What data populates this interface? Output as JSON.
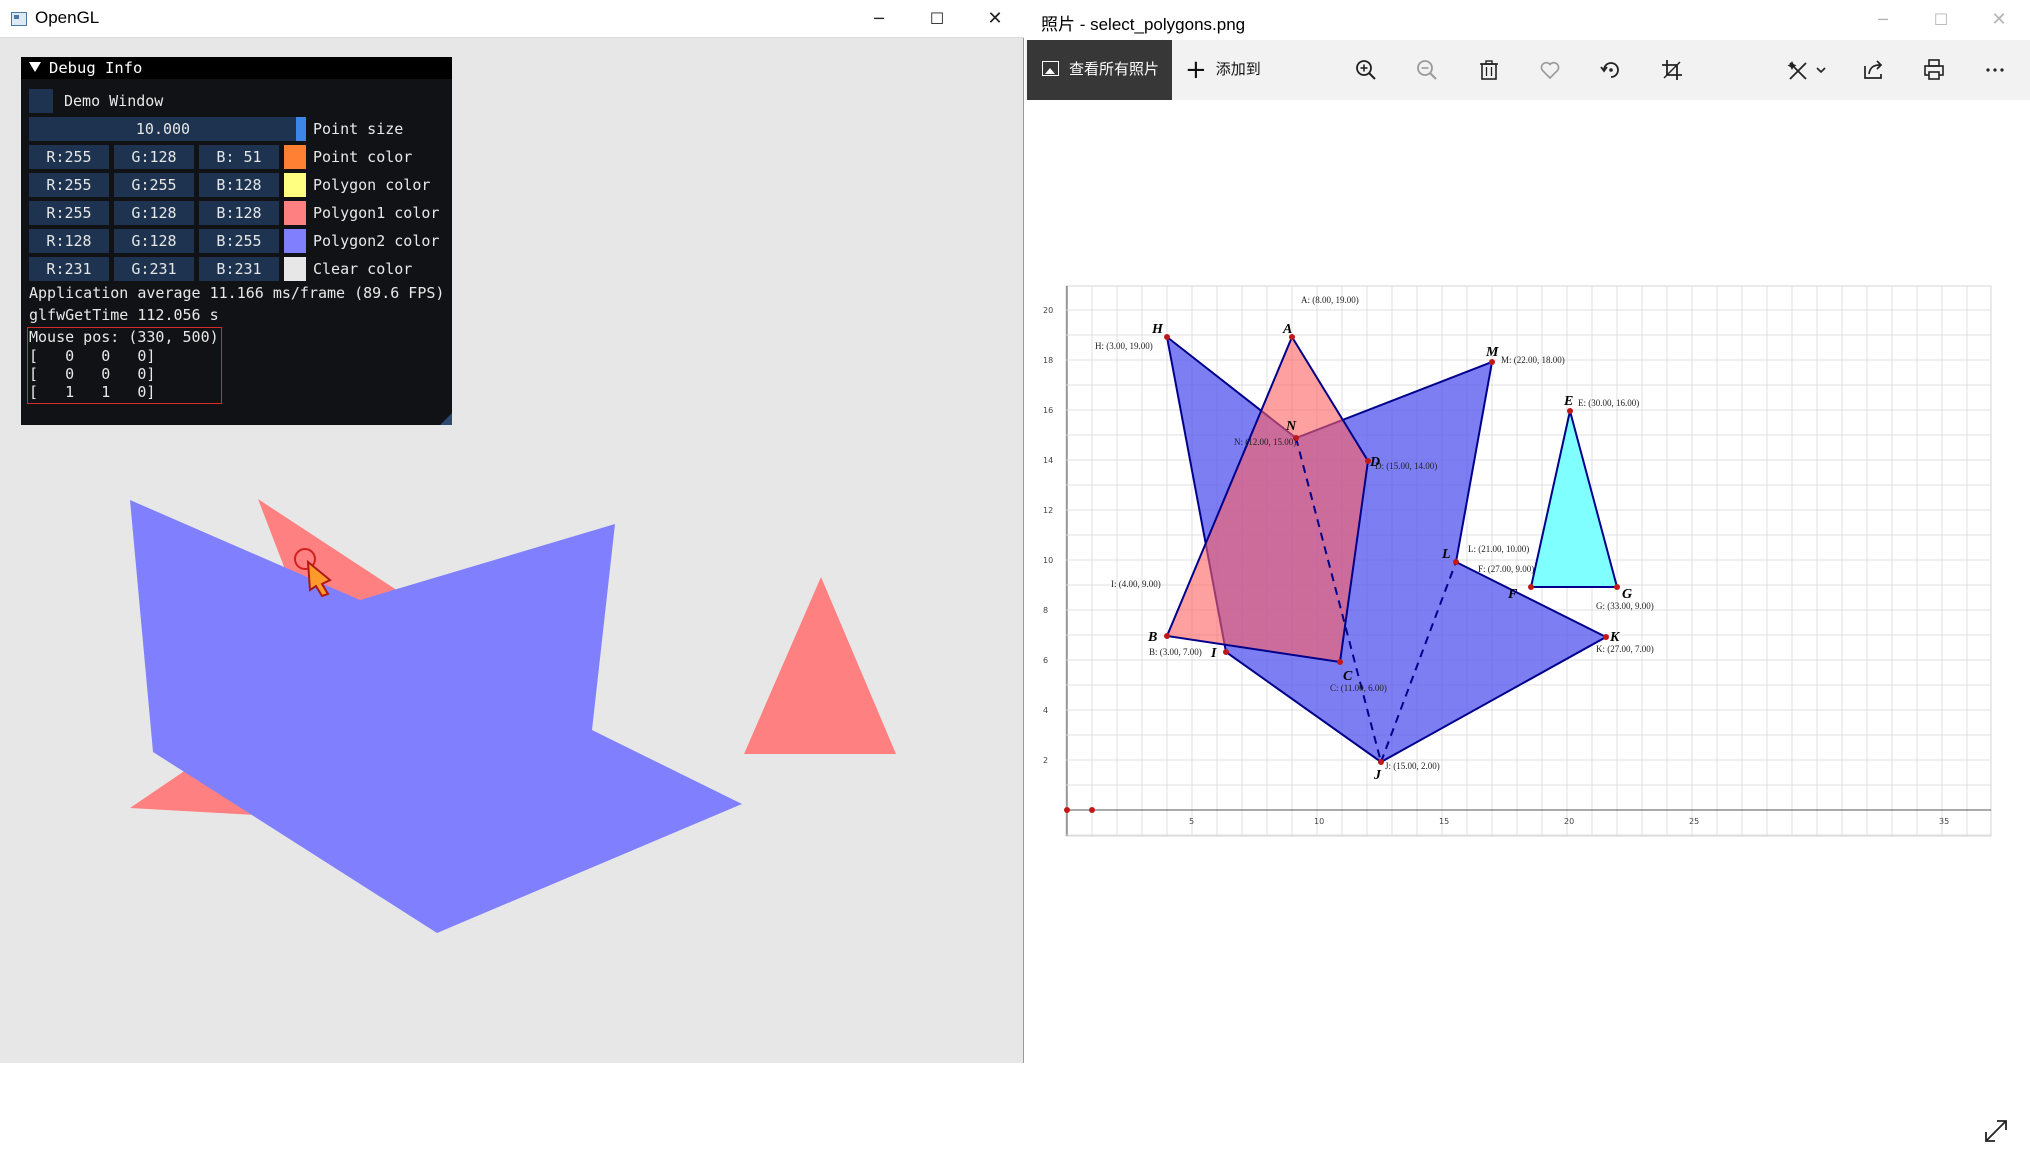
{
  "left_window": {
    "title": "OpenGL",
    "controls": {
      "minimize": "─",
      "maximize": "☐",
      "close": "✕"
    }
  },
  "debug": {
    "header": "Debug Info",
    "demo_window_label": "Demo Window",
    "point_size_value": "10.000",
    "point_size_label": "Point size",
    "rows": [
      {
        "r": "R:255",
        "g": "G:128",
        "b": "B: 51",
        "label": "Point color",
        "color": "#ff8033"
      },
      {
        "r": "R:255",
        "g": "G:255",
        "b": "B:128",
        "label": "Polygon color",
        "color": "#ffff80"
      },
      {
        "r": "R:255",
        "g": "G:128",
        "b": "B:128",
        "label": "Polygon1 color",
        "color": "#ff8080"
      },
      {
        "r": "R:128",
        "g": "G:128",
        "b": "B:255",
        "label": "Polygon2 color",
        "color": "#8080ff"
      },
      {
        "r": "R:231",
        "g": "G:231",
        "b": "B:231",
        "label": "Clear color",
        "color": "#e7e7e7"
      }
    ],
    "fps_text": "Application average 11.166 ms/frame (89.6 FPS)",
    "time_text": "glfwGetTime 112.056 s",
    "mouse_text": "Mouse pos: (330, 500)",
    "matrix": [
      "[   0   0   0]",
      "[   0   0   0]",
      "[   1   1   0]"
    ]
  },
  "right_window": {
    "title": "照片 - select_polygons.png",
    "controls": {
      "minimize": "─",
      "maximize": "☐",
      "close": "✕"
    },
    "toolbar": {
      "view_all": "查看所有照片",
      "add_to": "添加到",
      "icons": [
        "zoom-in-icon",
        "zoom-out-icon",
        "delete-icon",
        "favorite-icon",
        "rotate-icon",
        "crop-icon",
        "edit-icon",
        "share-icon",
        "print-icon",
        "more-icon"
      ]
    }
  },
  "plot": {
    "x_ticks": [
      "5",
      "10",
      "15",
      "20",
      "25",
      "35"
    ],
    "y_ticks": [
      "2",
      "4",
      "6",
      "8",
      "10",
      "12",
      "14",
      "16",
      "18",
      "20"
    ],
    "points": [
      {
        "name": "A",
        "label": "A: (8.00, 19.00)"
      },
      {
        "name": "B",
        "label": "B: (3.00, 7.00)"
      },
      {
        "name": "C",
        "label": "C: (11.00, 6.00)"
      },
      {
        "name": "D",
        "label": "D: (15.00, 14.00)"
      },
      {
        "name": "E",
        "label": "E: (30.00, 16.00)"
      },
      {
        "name": "F",
        "label": "F: (27.00, 9.00)"
      },
      {
        "name": "G",
        "label": "G: (33.00, 9.00)"
      },
      {
        "name": "H",
        "label": "H: (3.00, 19.00)"
      },
      {
        "name": "I",
        "label": "I: (4.00, 9.00)"
      },
      {
        "name": "J",
        "label": "J: (15.00, 2.00)"
      },
      {
        "name": "K",
        "label": "K: (27.00, 7.00)"
      },
      {
        "name": "L",
        "label": "L: (21.00, 10.00)"
      },
      {
        "name": "M",
        "label": "M: (22.00, 18.00)"
      },
      {
        "name": "N",
        "label": "N: (12.00, 15.00)"
      }
    ]
  }
}
